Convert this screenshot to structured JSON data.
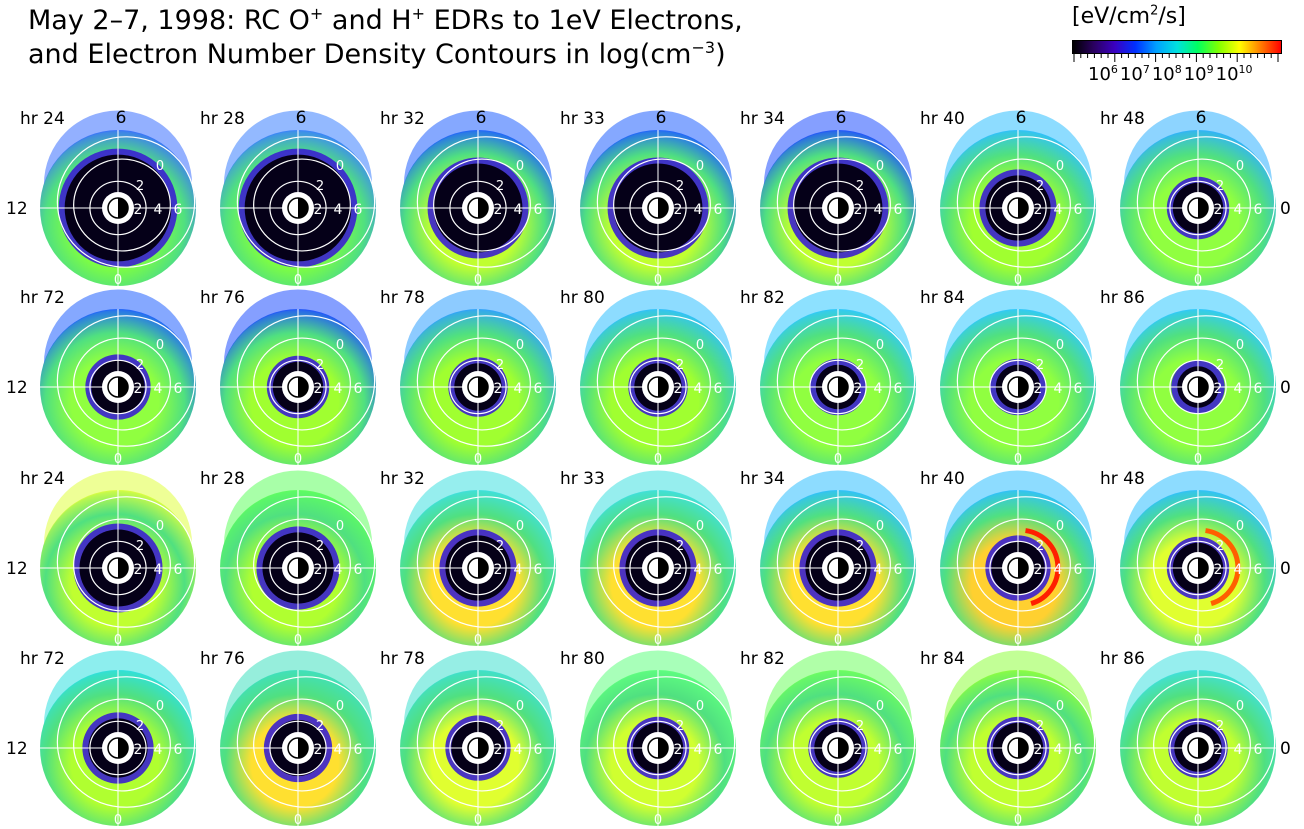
{
  "title": {
    "line1_a": "May 2–7, 1998: RC O",
    "line1_sup1": "+",
    "line1_b": " and H",
    "line1_sup2": "+",
    "line1_c": " EDRs to 1eV Electrons,",
    "line2_a": "and Electron Number Density Contours in log(cm",
    "line2_sup": "−3",
    "line2_b": ")"
  },
  "colorbar": {
    "unit_a": "[eV/cm",
    "unit_sup": "2",
    "unit_b": "/s]",
    "ticks": [
      {
        "base": "10",
        "exp": "6"
      },
      {
        "base": "10",
        "exp": "7"
      },
      {
        "base": "10",
        "exp": "8"
      },
      {
        "base": "10",
        "exp": "9"
      },
      {
        "base": "10",
        "exp": "10"
      }
    ],
    "colors": [
      "#000000",
      "#2a0060",
      "#3a00c0",
      "#0030ff",
      "#00a0ff",
      "#00e0e0",
      "#00ff60",
      "#80ff00",
      "#ffff00",
      "#ff8000",
      "#ff0000"
    ]
  },
  "chart_data": {
    "type": "heatmap",
    "description_free": true,
    "mlt_labels": {
      "top": "6",
      "left": "12",
      "right": "0"
    },
    "radial_ticks": [
      "2",
      "4",
      "6"
    ],
    "contour_label": "0",
    "contour_label_2": "2",
    "rows": [
      {
        "panels": [
          "hr 24",
          "hr 28",
          "hr 32",
          "hr 33",
          "hr 34",
          "hr 40",
          "hr 48"
        ],
        "show_top_six": true,
        "core_fraction": [
          0.36,
          0.36,
          0.3,
          0.3,
          0.3,
          0.22,
          0.17
        ]
      },
      {
        "panels": [
          "hr 72",
          "hr 76",
          "hr 78",
          "hr 80",
          "hr 82",
          "hr 84",
          "hr 86"
        ],
        "show_top_six": false,
        "core_fraction": [
          0.18,
          0.17,
          0.16,
          0.16,
          0.15,
          0.15,
          0.14
        ]
      },
      {
        "panels": [
          "hr 24",
          "hr 28",
          "hr 32",
          "hr 33",
          "hr 34",
          "hr 40",
          "hr 48"
        ],
        "show_top_six": false,
        "core_fraction": [
          0.26,
          0.24,
          0.22,
          0.22,
          0.22,
          0.18,
          0.17
        ]
      },
      {
        "panels": [
          "hr 72",
          "hr 76",
          "hr 78",
          "hr 80",
          "hr 82",
          "hr 84",
          "hr 86"
        ],
        "show_top_six": false,
        "core_fraction": [
          0.2,
          0.19,
          0.18,
          0.17,
          0.16,
          0.17,
          0.16
        ]
      }
    ],
    "outer_colors": [
      [
        "#3a70ff",
        "#3a80ff",
        "#2060ff",
        "#2060ff",
        "#2050ff",
        "#30c0ff",
        "#30b0ff"
      ],
      [
        "#2060ff",
        "#2050ff",
        "#30a0ff",
        "#30c0ff",
        "#30c8ff",
        "#30c8ff",
        "#30c8ff"
      ],
      [
        "#e0ff40",
        "#60ff60",
        "#40e0e0",
        "#40e0e0",
        "#30c0ff",
        "#30c0ff",
        "#30c0ff"
      ],
      [
        "#30e0e0",
        "#40e0c0",
        "#40e0d0",
        "#60ff80",
        "#70ff60",
        "#90ff40",
        "#40e0e0"
      ]
    ],
    "inner_colors": [
      [
        "#80ff40",
        "#80ff40",
        "#c0ff30",
        "#c0ff30",
        "#c0ff30",
        "#a0ff30",
        "#90ff40"
      ],
      [
        "#90ff40",
        "#a0ff30",
        "#a0ff30",
        "#a0ff30",
        "#90ff40",
        "#90ff40",
        "#90ff40"
      ],
      [
        "#c0ff30",
        "#b0ff30",
        "#ffe030",
        "#ffe030",
        "#ffe030",
        "#ffd030",
        "#e0ff30"
      ],
      [
        "#b0ff30",
        "#ffe030",
        "#e0ff30",
        "#d0ff30",
        "#c0ff30",
        "#c0ff30",
        "#c0ff30"
      ]
    ],
    "ring_highlight": [
      [
        null,
        null,
        null,
        null,
        null,
        null,
        null
      ],
      [
        null,
        null,
        null,
        null,
        null,
        null,
        null
      ],
      [
        null,
        null,
        null,
        null,
        null,
        "#ff2000",
        "#ff6000"
      ],
      [
        null,
        null,
        null,
        null,
        null,
        null,
        null
      ]
    ]
  }
}
